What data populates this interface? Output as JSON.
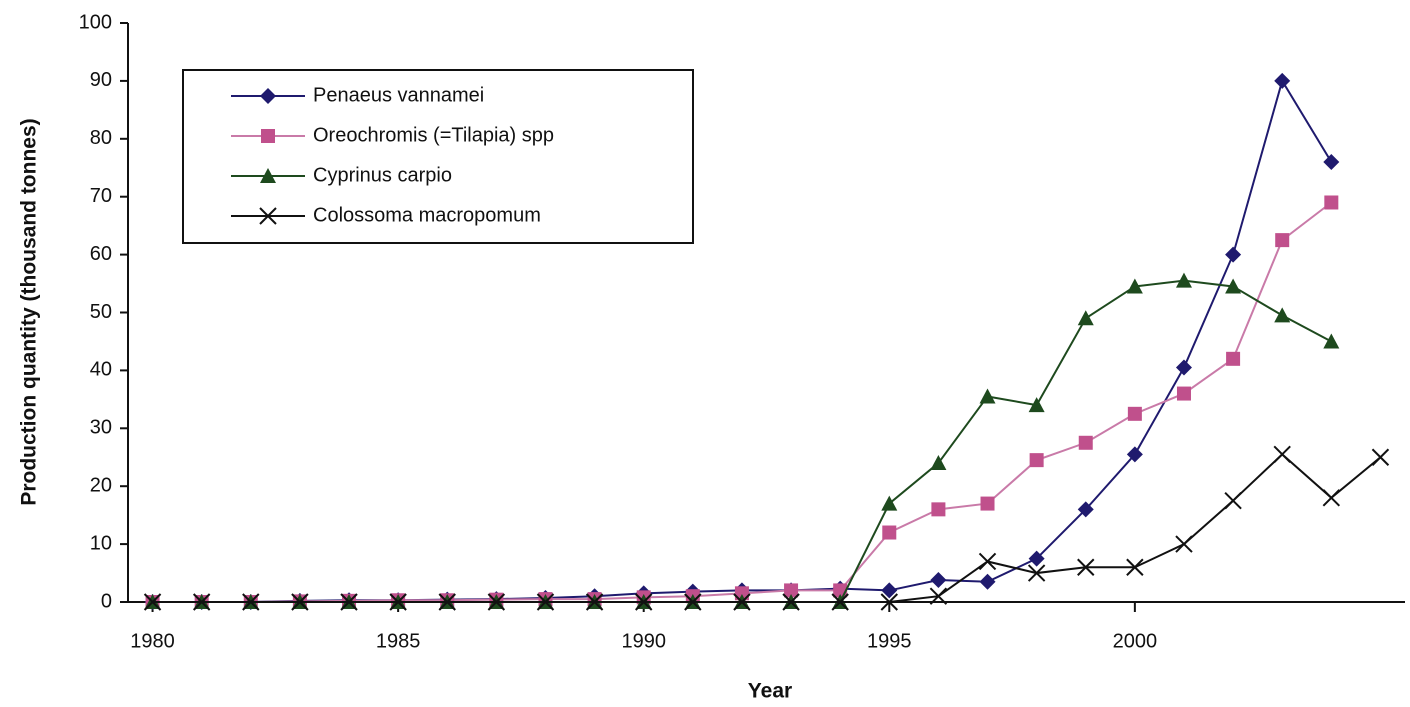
{
  "chart_data": {
    "type": "line",
    "x_label": "Year",
    "y_label": "Production quantity (thousand tonnes)",
    "x": [
      1980,
      1981,
      1982,
      1983,
      1984,
      1985,
      1986,
      1987,
      1988,
      1989,
      1990,
      1991,
      1992,
      1993,
      1994,
      1995,
      1996,
      1997,
      1998,
      1999,
      2000,
      2001,
      2002,
      2003,
      2004,
      2005
    ],
    "series": [
      {
        "name": "Penaeus vannamei",
        "color": "#1f1a6e",
        "marker": "diamond",
        "values": [
          0,
          0,
          0,
          0.2,
          0.3,
          0.3,
          0.4,
          0.5,
          0.7,
          1,
          1.5,
          1.8,
          2,
          2,
          2.3,
          2,
          3.8,
          3.5,
          7.5,
          16,
          25.5,
          40.5,
          60,
          90,
          76,
          null
        ]
      },
      {
        "name": "Oreochromis (=Tilapia) spp",
        "color": "#c0508c",
        "marker": "square",
        "values": [
          0,
          0,
          0,
          0.1,
          0.2,
          0.3,
          0.3,
          0.4,
          0.5,
          0.5,
          0.8,
          1,
          1.5,
          2,
          2,
          12,
          16,
          17,
          24.5,
          27.5,
          32.5,
          36,
          42,
          62.5,
          69,
          null
        ]
      },
      {
        "name": "Cyprinus carpio",
        "color": "#1e4a1e",
        "marker": "triangle",
        "values": [
          0,
          0,
          0,
          0,
          0,
          0,
          0,
          0,
          0,
          0,
          0,
          0,
          0,
          0,
          0,
          17,
          24,
          35.5,
          34,
          49,
          54.5,
          55.5,
          54.5,
          49.5,
          45,
          null
        ]
      },
      {
        "name": "Colossoma macropomum",
        "color": "#111111",
        "marker": "x",
        "values": [
          0,
          0,
          0,
          0,
          0,
          0,
          0,
          0,
          0,
          0,
          0,
          0,
          0,
          0,
          0,
          0,
          1,
          7,
          5,
          6,
          6,
          10,
          17.5,
          25.5,
          18,
          25
        ]
      }
    ],
    "xlim": [
      1979.5,
      2005.5
    ],
    "xticks": [
      1980,
      1985,
      1990,
      1995,
      2000
    ],
    "ylim": [
      0,
      100
    ],
    "yticks": [
      0,
      10,
      20,
      30,
      40,
      50,
      60,
      70,
      80,
      90,
      100
    ],
    "legend": "upper left"
  }
}
